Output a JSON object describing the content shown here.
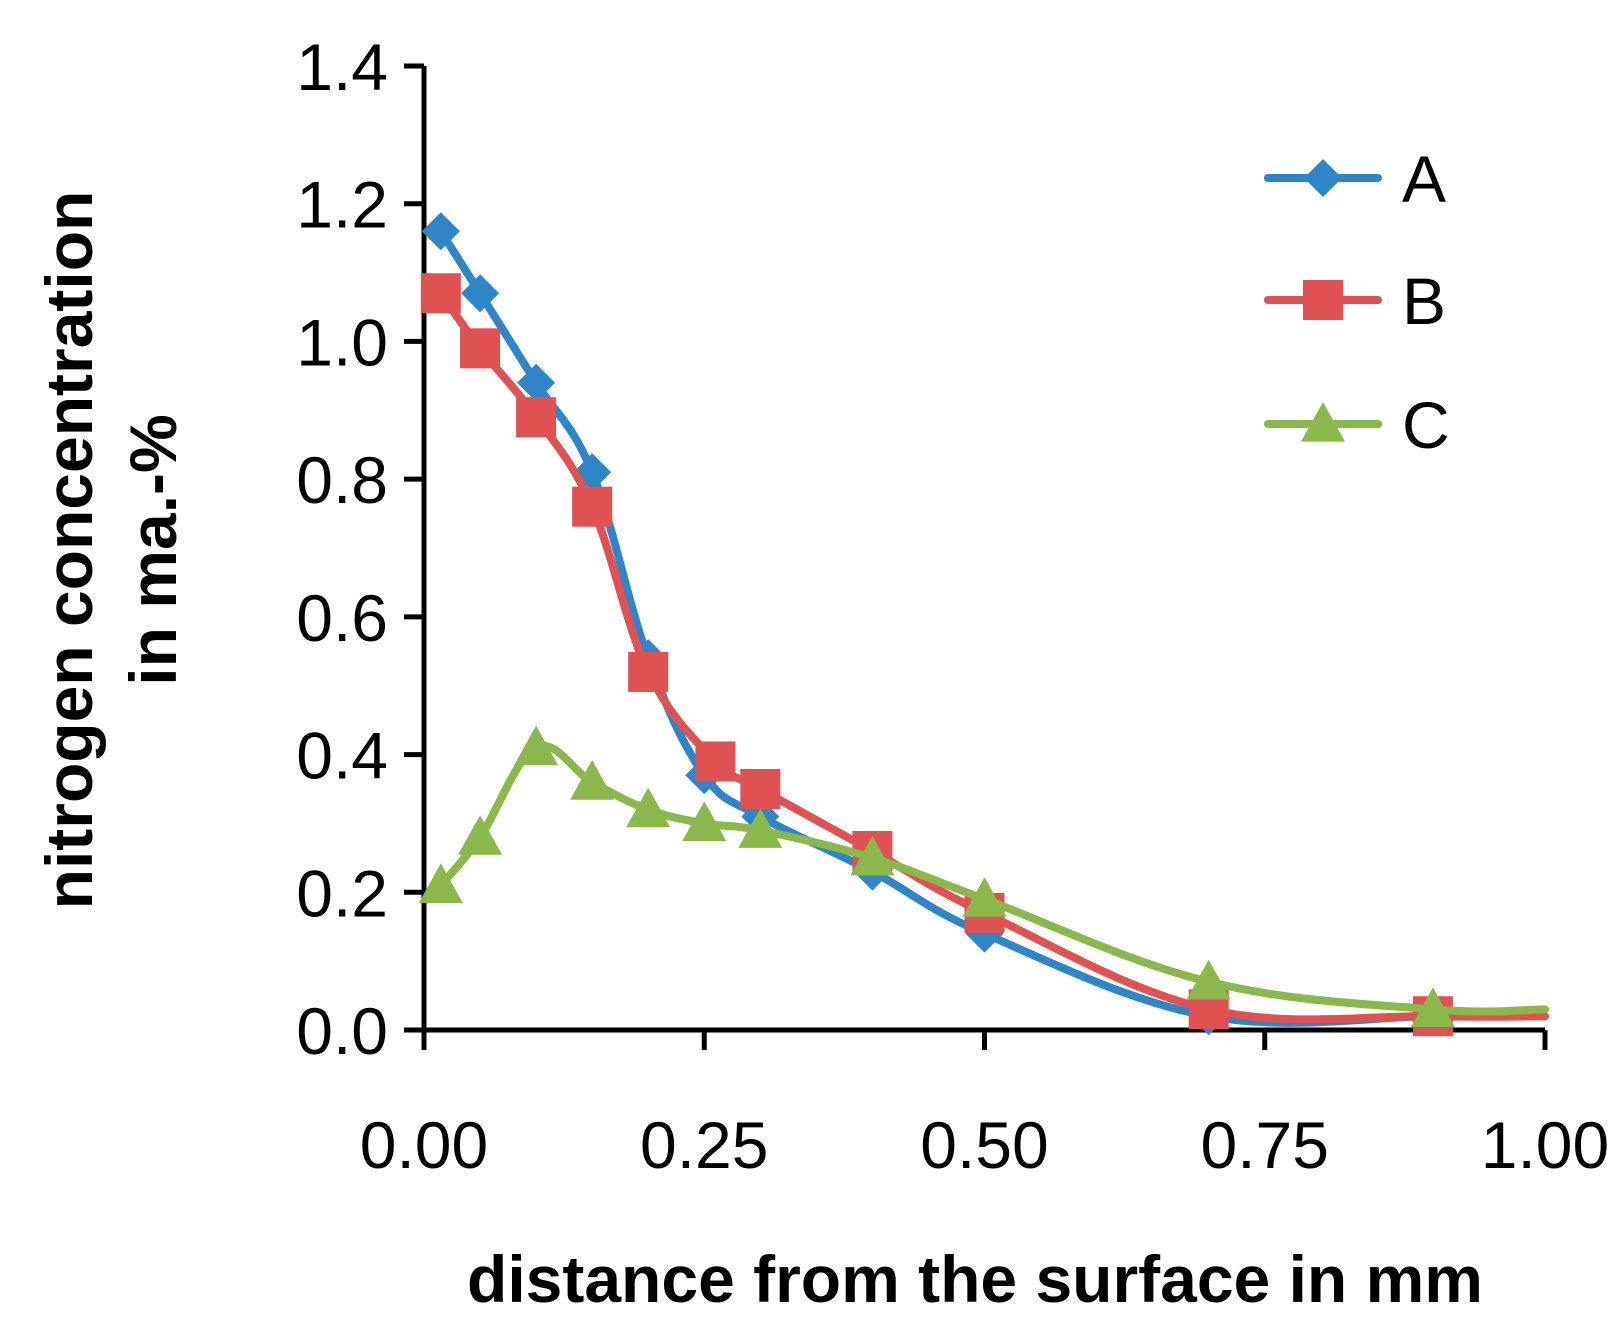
{
  "chart_data": {
    "type": "line",
    "title": "",
    "xlabel": "distance from the surface in mm",
    "ylabel_line1": "nitrogen concentration",
    "ylabel_line2": "in ma.-%",
    "xlim": [
      0,
      1
    ],
    "ylim": [
      0,
      1.4
    ],
    "xticks": [
      0,
      0.25,
      0.5,
      0.75,
      1.0
    ],
    "xtick_labels": [
      "0.00",
      "0.25",
      "0.50",
      "0.75",
      "1.00"
    ],
    "yticks": [
      0,
      0.2,
      0.4,
      0.6,
      0.8,
      1.0,
      1.2,
      1.4
    ],
    "ytick_labels": [
      "0.0",
      "0.2",
      "0.4",
      "0.6",
      "0.8",
      "1.0",
      "1.2",
      "1.4"
    ],
    "grid": false,
    "legend_position": "top-right",
    "series": [
      {
        "name": "A",
        "marker": "diamond",
        "color": "#2e86c8",
        "x": [
          0.015,
          0.05,
          0.1,
          0.15,
          0.2,
          0.25,
          0.3,
          0.4,
          0.5,
          0.7,
          0.9
        ],
        "y": [
          1.16,
          1.07,
          0.94,
          0.81,
          0.54,
          0.37,
          0.31,
          0.23,
          0.14,
          0.02,
          0.02
        ]
      },
      {
        "name": "B",
        "marker": "square",
        "color": "#e05252",
        "x": [
          0.015,
          0.05,
          0.1,
          0.15,
          0.2,
          0.26,
          0.3,
          0.4,
          0.5,
          0.7,
          0.9
        ],
        "y": [
          1.07,
          0.99,
          0.89,
          0.76,
          0.52,
          0.39,
          0.35,
          0.26,
          0.17,
          0.03,
          0.02
        ]
      },
      {
        "name": "C",
        "marker": "triangle",
        "color": "#8ab84a",
        "x": [
          0.015,
          0.05,
          0.1,
          0.15,
          0.2,
          0.25,
          0.3,
          0.4,
          0.5,
          0.7,
          0.9
        ],
        "y": [
          0.21,
          0.28,
          0.41,
          0.36,
          0.32,
          0.3,
          0.29,
          0.25,
          0.19,
          0.07,
          0.03
        ]
      }
    ]
  }
}
